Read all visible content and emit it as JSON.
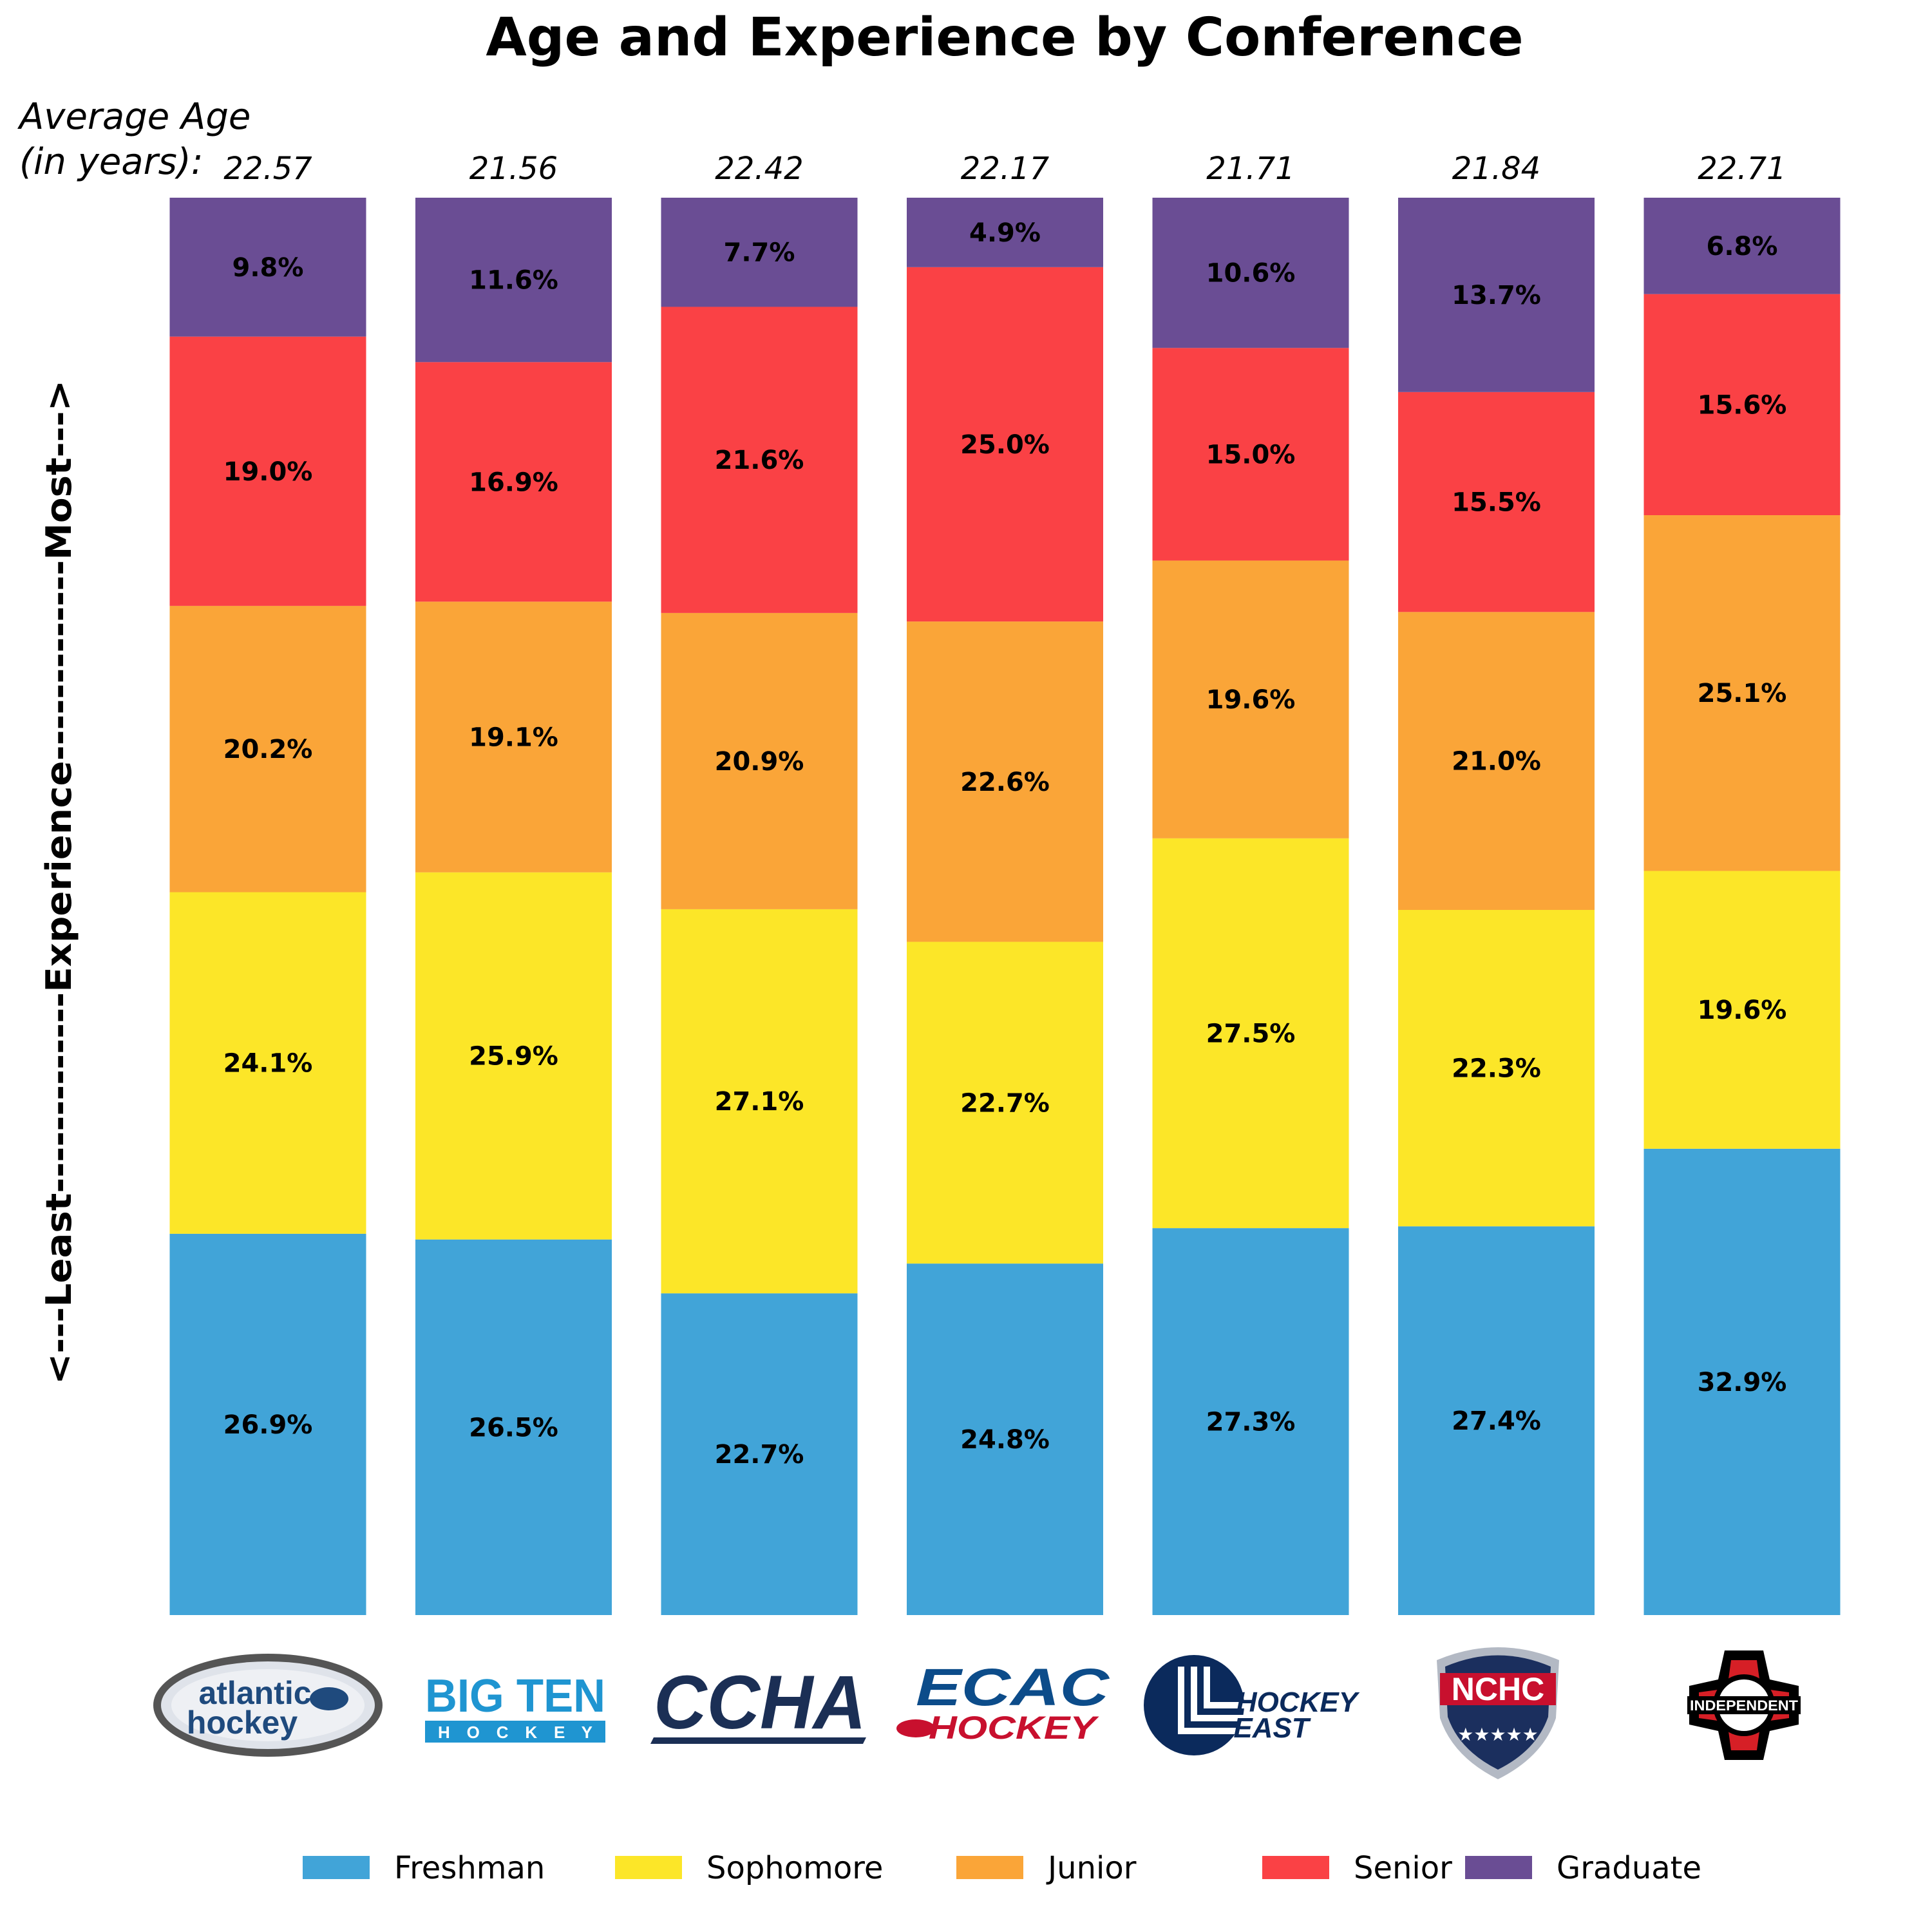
{
  "chart_data": {
    "type": "bar",
    "stacked": true,
    "title": "Age and Experience by Conference",
    "ylabel": "<---Least-------------Experience-------------Most--->",
    "avg_age_label_line1": "Average Age",
    "avg_age_label_line2": "(in years):",
    "categories": [
      "Atlantic Hockey",
      "Big Ten",
      "CCHA",
      "ECAC",
      "Hockey East",
      "NCHC",
      "Independent"
    ],
    "average_age": [
      22.57,
      21.56,
      22.42,
      22.17,
      21.71,
      21.84,
      22.71
    ],
    "average_age_labels": [
      "22.57",
      "21.56",
      "22.42",
      "22.17",
      "21.71",
      "21.84",
      "22.71"
    ],
    "series": [
      {
        "name": "Freshman",
        "color": "#41a4d8",
        "values": [
          26.9,
          26.5,
          22.7,
          24.8,
          27.3,
          27.4,
          32.9
        ],
        "labels": [
          "26.9%",
          "26.5%",
          "22.7%",
          "24.8%",
          "27.3%",
          "27.4%",
          "32.9%"
        ]
      },
      {
        "name": "Sophomore",
        "color": "#fce628",
        "values": [
          24.1,
          25.9,
          27.1,
          22.7,
          27.5,
          22.3,
          19.6
        ],
        "labels": [
          "24.1%",
          "25.9%",
          "27.1%",
          "22.7%",
          "27.5%",
          "22.3%",
          "19.6%"
        ]
      },
      {
        "name": "Junior",
        "color": "#faa538",
        "values": [
          20.2,
          19.1,
          20.9,
          22.6,
          19.6,
          21.0,
          25.1
        ],
        "labels": [
          "20.2%",
          "19.1%",
          "20.9%",
          "22.6%",
          "19.6%",
          "21.0%",
          "25.1%"
        ]
      },
      {
        "name": "Senior",
        "color": "#fa4145",
        "values": [
          19.0,
          16.9,
          21.6,
          25.0,
          15.0,
          15.5,
          15.6
        ],
        "labels": [
          "19.0%",
          "16.9%",
          "21.6%",
          "25.0%",
          "15.0%",
          "15.5%",
          "15.6%"
        ]
      },
      {
        "name": "Graduate",
        "color": "#6a4d94",
        "values": [
          9.8,
          11.6,
          7.7,
          4.9,
          10.6,
          13.7,
          6.8
        ],
        "labels": [
          "9.8%",
          "11.6%",
          "7.7%",
          "4.9%",
          "10.6%",
          "13.7%",
          "6.8%"
        ]
      }
    ],
    "ylim": [
      0,
      100
    ],
    "grid": false,
    "legend": "bottom-center",
    "logos": {
      "atlantic_line1": "atlantic",
      "atlantic_line2": "hockey",
      "bigten_line1": "BIG TEN",
      "bigten_line2": "H O C K E Y",
      "ccha": "CCHA",
      "ecac_line1": "ECAC",
      "ecac_line2": "HOCKEY",
      "he_line1": "HOCKEY",
      "he_line2": "EAST",
      "nchc": "NCHC",
      "independent": "INDEPENDENT"
    }
  }
}
